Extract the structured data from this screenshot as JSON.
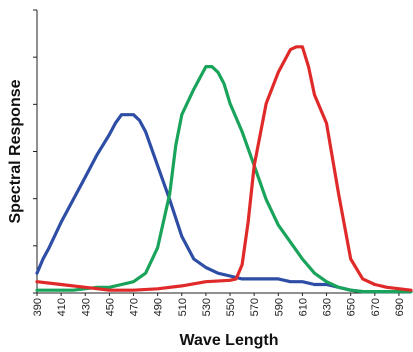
{
  "chart_data": {
    "type": "line",
    "title": "",
    "xlabel": "Wave Length",
    "ylabel": "Spectral Response",
    "xlim": [
      390,
      700
    ],
    "ylim": [
      0,
      100
    ],
    "x_ticks": [
      "390",
      "410",
      "430",
      "450",
      "470",
      "490",
      "510",
      "530",
      "550",
      "570",
      "590",
      "610",
      "630",
      "650",
      "670",
      "690"
    ],
    "grid": false,
    "legend": "none",
    "series": [
      {
        "color": "#2e4ea6",
        "x": [
          390,
          395,
          400,
          410,
          420,
          430,
          440,
          450,
          455,
          460,
          465,
          470,
          475,
          480,
          490,
          500,
          510,
          520,
          530,
          540,
          550,
          560,
          570,
          580,
          590,
          600,
          610,
          620,
          630,
          640,
          650,
          660,
          670,
          680,
          690,
          700
        ],
        "y": [
          7,
          12,
          16,
          25,
          33,
          41,
          49,
          56,
          60,
          63,
          63,
          63,
          61,
          57,
          45,
          33,
          20,
          12,
          9,
          7,
          6,
          5,
          5,
          5,
          5,
          4,
          4,
          3,
          3,
          2,
          1,
          0.5,
          0.5,
          0.5,
          0.5,
          0.5
        ]
      },
      {
        "color": "#1aa35a",
        "x": [
          390,
          420,
          440,
          450,
          460,
          470,
          480,
          490,
          500,
          505,
          510,
          520,
          530,
          535,
          540,
          545,
          550,
          560,
          570,
          580,
          590,
          600,
          610,
          620,
          630,
          640,
          650,
          660,
          670,
          680,
          700
        ],
        "y": [
          1,
          1,
          2,
          2,
          3,
          4,
          7,
          16,
          35,
          52,
          63,
          72,
          80,
          80,
          78,
          74,
          67,
          57,
          45,
          33,
          24,
          18,
          12,
          7,
          4,
          2,
          1,
          0.5,
          0.5,
          0.5,
          0.5
        ]
      },
      {
        "color": "#e02a2a",
        "x": [
          390,
          410,
          430,
          450,
          470,
          490,
          510,
          530,
          550,
          555,
          560,
          565,
          570,
          580,
          590,
          600,
          605,
          610,
          615,
          620,
          630,
          640,
          650,
          660,
          670,
          680,
          700
        ],
        "y": [
          4,
          3,
          2,
          1,
          1,
          1.5,
          2.5,
          4,
          4.5,
          5,
          10,
          25,
          45,
          67,
          78,
          86,
          87,
          87,
          80,
          70,
          60,
          35,
          12,
          5,
          3,
          2,
          1
        ]
      }
    ]
  }
}
